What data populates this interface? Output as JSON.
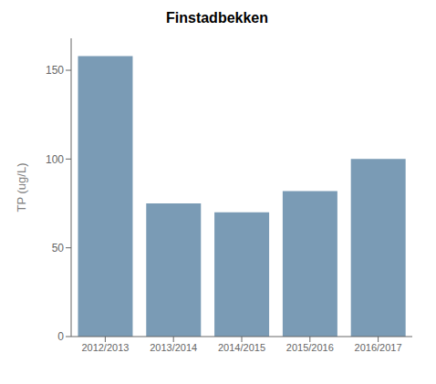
{
  "chart_data": {
    "type": "bar",
    "title": "Finstadbekken",
    "ylabel": "TP (ug/L)",
    "categories": [
      "2012/2013",
      "2013/2014",
      "2014/2015",
      "2015/2016",
      "2016/2017"
    ],
    "values": [
      158,
      75,
      70,
      82,
      100
    ],
    "color": "#7A9BB5",
    "ylim": [
      0,
      168
    ],
    "yticks": [
      0,
      50,
      100,
      150
    ],
    "grid": false
  }
}
